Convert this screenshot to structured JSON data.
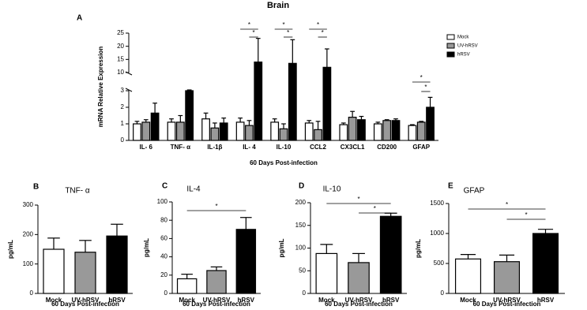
{
  "chart_data": [
    {
      "type": "bar",
      "label": "A",
      "title": "Brain",
      "ylabel": "mRNA Relative Expression",
      "xlabel": "60 Days Post-infection",
      "categories": [
        "IL- 6",
        "TNF- α",
        "IL-1β",
        "IL- 4",
        "IL-10",
        "CCL2",
        "CX3CL1",
        "CD200",
        "GFAP"
      ],
      "series": [
        {
          "name": "Mock",
          "color": "#ffffff",
          "values": [
            1.0,
            1.1,
            1.3,
            1.1,
            1.1,
            1.05,
            0.95,
            1.0,
            0.9
          ],
          "errors": [
            0.15,
            0.2,
            0.35,
            0.25,
            0.2,
            0.15,
            0.1,
            0.1,
            0.05
          ]
        },
        {
          "name": "UV-hRSV",
          "color": "#999999",
          "values": [
            1.1,
            1.1,
            0.75,
            0.9,
            0.7,
            0.65,
            1.4,
            1.2,
            1.1
          ],
          "errors": [
            0.15,
            0.4,
            0.3,
            0.3,
            0.3,
            0.5,
            0.35,
            0.05,
            0.05
          ]
        },
        {
          "name": "hRSV",
          "color": "#000000",
          "values": [
            1.65,
            3.0,
            1.05,
            14,
            13.5,
            12,
            1.25,
            1.2,
            2.0
          ],
          "errors": [
            0.6,
            0.3,
            0.3,
            9,
            9,
            7,
            0.2,
            0.1,
            0.6
          ]
        }
      ],
      "ylim": [
        0,
        25
      ],
      "axis_break": [
        3,
        10
      ],
      "yticks": [
        0,
        1,
        2,
        3,
        10,
        15,
        20,
        25
      ],
      "annotations": [
        "*",
        "*",
        "*",
        "*",
        "*",
        "*",
        "*",
        "*"
      ]
    },
    {
      "type": "bar",
      "label": "B",
      "title": "TNF- α",
      "ylabel": "pg/mL",
      "xlabel": "60 Days Post-infection",
      "categories": [
        "Mock",
        "UV-hRSV",
        "hRSV"
      ],
      "colors": [
        "#ffffff",
        "#999999",
        "#000000"
      ],
      "values": [
        150,
        140,
        195
      ],
      "errors": [
        38,
        40,
        40
      ],
      "ylim": [
        0,
        300
      ],
      "yticks": [
        0,
        100,
        200,
        300
      ],
      "annotations": []
    },
    {
      "type": "bar",
      "label": "C",
      "title": "IL-4",
      "ylabel": "pg/mL",
      "xlabel": "60 Days Post-infection",
      "categories": [
        "Mock",
        "UV-hRSV",
        "hRSV"
      ],
      "colors": [
        "#ffffff",
        "#999999",
        "#000000"
      ],
      "values": [
        16,
        25,
        70
      ],
      "errors": [
        5,
        4,
        13
      ],
      "ylim": [
        0,
        100
      ],
      "yticks": [
        0,
        20,
        40,
        60,
        80,
        100
      ],
      "annotations": [
        "*"
      ]
    },
    {
      "type": "bar",
      "label": "D",
      "title": "IL-10",
      "ylabel": "pg/mL",
      "xlabel": "60 Days Post-infection",
      "categories": [
        "Mock",
        "UV-hRSV",
        "hRSV"
      ],
      "colors": [
        "#ffffff",
        "#999999",
        "#000000"
      ],
      "values": [
        88,
        68,
        170
      ],
      "errors": [
        20,
        20,
        7
      ],
      "ylim": [
        0,
        200
      ],
      "yticks": [
        0,
        50,
        100,
        150,
        200
      ],
      "annotations": [
        "*",
        "*"
      ]
    },
    {
      "type": "bar",
      "label": "E",
      "title": "GFAP",
      "ylabel": "pg/mL",
      "xlabel": "60 Days Post-infection",
      "categories": [
        "Mock",
        "UV-hRSV",
        "hRSV"
      ],
      "colors": [
        "#ffffff",
        "#999999",
        "#000000"
      ],
      "values": [
        575,
        530,
        1000
      ],
      "errors": [
        75,
        110,
        70
      ],
      "ylim": [
        0,
        1500
      ],
      "yticks": [
        0,
        500,
        1000,
        1500
      ],
      "annotations": [
        "*",
        "*"
      ]
    }
  ]
}
